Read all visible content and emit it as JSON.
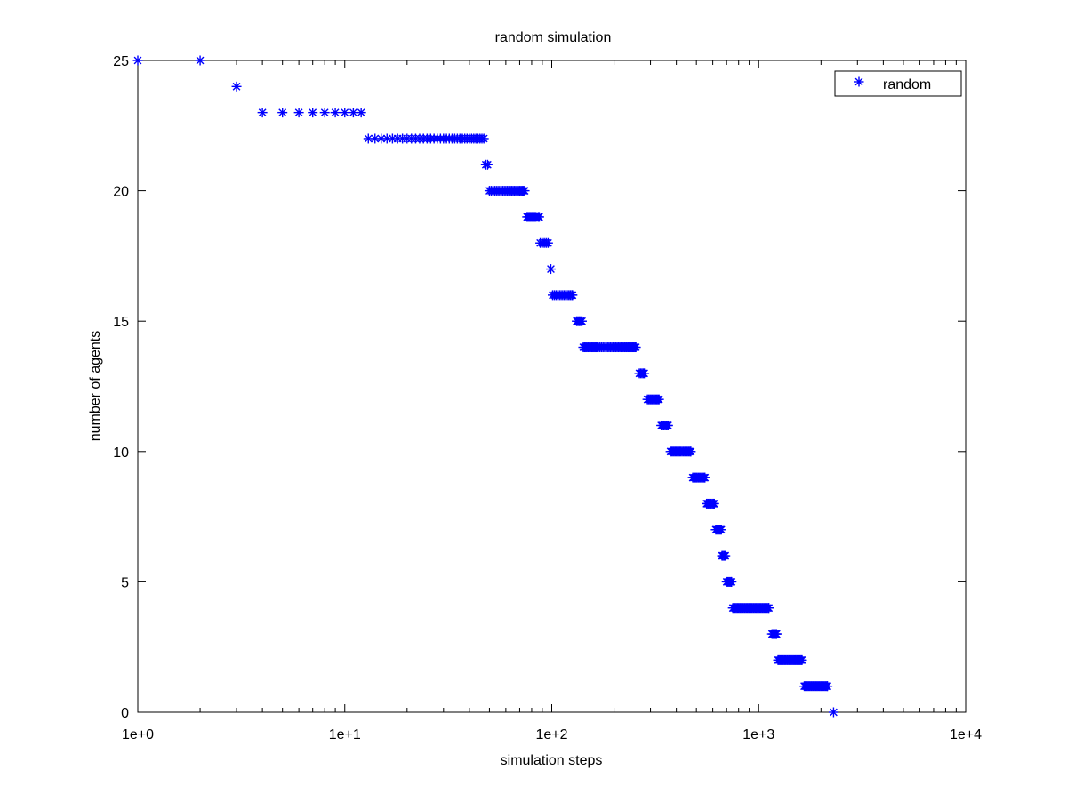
{
  "chart_data": {
    "type": "scatter",
    "title": "random simulation",
    "xlabel": "simulation steps",
    "ylabel": "number of agents",
    "xscale": "log",
    "xlim": [
      1,
      10000
    ],
    "ylim": [
      0,
      25
    ],
    "x_ticks": [
      1,
      10,
      100,
      1000,
      10000
    ],
    "x_tick_labels": [
      "1e+0",
      "1e+1",
      "1e+2",
      "1e+3",
      "1e+4"
    ],
    "y_ticks": [
      0,
      5,
      10,
      15,
      20,
      25
    ],
    "y_tick_labels": [
      "0",
      "5",
      "10",
      "15",
      "20",
      "25"
    ],
    "grid": false,
    "legend_position": "top-right",
    "marker": "asterisk",
    "color": "#0000ff",
    "series": [
      {
        "name": "random",
        "runs": [
          {
            "y": 25,
            "x": [
              1,
              2
            ]
          },
          {
            "y": 24,
            "x": [
              3
            ]
          },
          {
            "y": 23,
            "x": [
              4,
              5,
              6,
              7,
              8,
              9,
              10,
              11,
              12
            ]
          },
          {
            "y": 22,
            "x_from": 13,
            "x_to": 47
          },
          {
            "y": 21,
            "x_from": 48,
            "x_to": 49
          },
          {
            "y": 20,
            "x_from": 50,
            "x_to": 74
          },
          {
            "y": 19,
            "x_from": 76,
            "x_to": 87
          },
          {
            "y": 18,
            "x_from": 88,
            "x_to": 96
          },
          {
            "y": 17,
            "x": [
              99
            ]
          },
          {
            "y": 16,
            "x_from": 101,
            "x_to": 126
          },
          {
            "y": 15,
            "x_from": 132,
            "x_to": 140
          },
          {
            "y": 14,
            "x_from": 142,
            "x_to": 255
          },
          {
            "y": 13,
            "x_from": 265,
            "x_to": 280
          },
          {
            "y": 12,
            "x_from": 290,
            "x_to": 330
          },
          {
            "y": 11,
            "x_from": 338,
            "x_to": 365
          },
          {
            "y": 10,
            "x_from": 375,
            "x_to": 470
          },
          {
            "y": 9,
            "x_from": 480,
            "x_to": 550
          },
          {
            "y": 8,
            "x_from": 560,
            "x_to": 610
          },
          {
            "y": 7,
            "x_from": 620,
            "x_to": 660
          },
          {
            "y": 6,
            "x_from": 665,
            "x_to": 690
          },
          {
            "y": 5,
            "x_from": 700,
            "x_to": 740
          },
          {
            "y": 4,
            "x_from": 750,
            "x_to": 1120
          },
          {
            "y": 3,
            "x_from": 1160,
            "x_to": 1220
          },
          {
            "y": 2,
            "x_from": 1240,
            "x_to": 1620
          },
          {
            "y": 1,
            "x_from": 1660,
            "x_to": 2150
          },
          {
            "y": 0,
            "x": [
              2300
            ]
          }
        ]
      }
    ]
  }
}
